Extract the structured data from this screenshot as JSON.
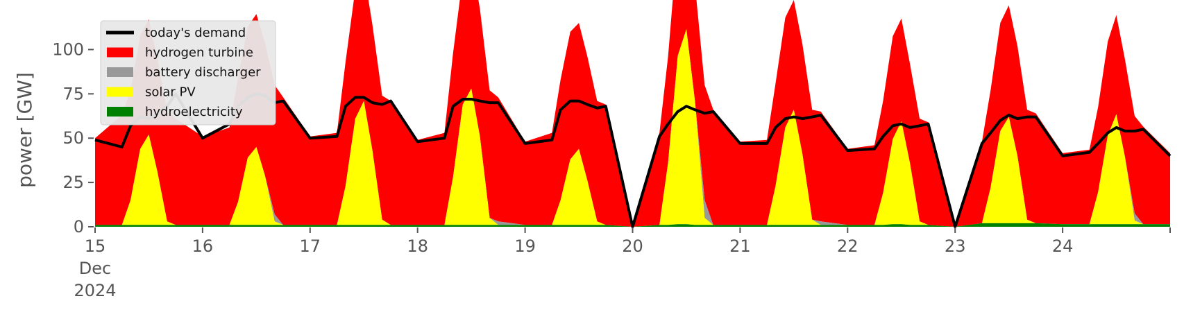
{
  "chart_data": {
    "type": "area",
    "ylabel": "power [GW]",
    "xlim_days": [
      15,
      25
    ],
    "ylim": [
      0,
      117
    ],
    "grid": false,
    "legend_position": "top-left",
    "x_ticks": [
      {
        "day": 15,
        "label": "15"
      },
      {
        "day": 16,
        "label": "16"
      },
      {
        "day": 17,
        "label": "17"
      },
      {
        "day": 18,
        "label": "18"
      },
      {
        "day": 19,
        "label": "19"
      },
      {
        "day": 20,
        "label": "20"
      },
      {
        "day": 21,
        "label": "21"
      },
      {
        "day": 22,
        "label": "22"
      },
      {
        "day": 23,
        "label": "23"
      },
      {
        "day": 24,
        "label": "24"
      }
    ],
    "x_tick_month": "Dec",
    "x_tick_year": "2024",
    "y_ticks": [
      0,
      25,
      50,
      75,
      100
    ],
    "day_samples": [
      0,
      0.25,
      0.33,
      0.42,
      0.5,
      0.58,
      0.67,
      0.75,
      1
    ],
    "series": [
      {
        "name": "hydroelectricity",
        "color": "#008000",
        "values": [
          [
            1,
            1,
            1,
            1,
            1,
            1,
            1,
            1
          ],
          [
            1,
            1,
            1,
            1,
            1,
            1,
            1,
            1
          ],
          [
            1,
            1,
            1,
            1,
            1,
            1,
            1,
            1
          ],
          [
            1,
            1,
            1,
            1,
            1,
            1,
            1,
            1
          ],
          [
            1,
            1,
            1,
            1,
            1,
            1,
            1,
            1
          ],
          [
            1,
            1,
            1,
            1.5,
            1.5,
            1,
            1,
            1
          ],
          [
            1,
            1,
            1,
            1,
            1,
            1,
            1,
            1
          ],
          [
            1,
            1,
            1,
            1.5,
            1.5,
            1,
            1,
            1
          ],
          [
            2,
            2,
            2,
            2,
            2,
            2,
            2,
            2
          ],
          [
            1.5,
            1.5,
            1.5,
            1.5,
            1.5,
            1.5,
            1.5,
            1.5
          ]
        ]
      },
      {
        "name": "solar PV",
        "color": "#ffff00",
        "values": [
          [
            0,
            0,
            14,
            43,
            51,
            30,
            2,
            0
          ],
          [
            0,
            0,
            13,
            38,
            44,
            28,
            2,
            0
          ],
          [
            0,
            0,
            22,
            60,
            70,
            42,
            3,
            0
          ],
          [
            0,
            0,
            27,
            68,
            77,
            50,
            4,
            0
          ],
          [
            0,
            0,
            14,
            37,
            43,
            25,
            2,
            0
          ],
          [
            0,
            0,
            35,
            95,
            110,
            70,
            4,
            0
          ],
          [
            0,
            0,
            22,
            55,
            65,
            40,
            3,
            0
          ],
          [
            0,
            0,
            18,
            48,
            58,
            35,
            2,
            0
          ],
          [
            0,
            0,
            20,
            52,
            60,
            38,
            2,
            0
          ],
          [
            0,
            0,
            18,
            50,
            62,
            38,
            2,
            0
          ]
        ]
      },
      {
        "name": "battery discharger",
        "color": "#999999",
        "values": [
          [
            0,
            0,
            0,
            0,
            0,
            0,
            0,
            0
          ],
          [
            0,
            0,
            0,
            0,
            0,
            0,
            4,
            0
          ],
          [
            0,
            0,
            0,
            0,
            0,
            0,
            0,
            0
          ],
          [
            0,
            0,
            0,
            0,
            0,
            0,
            0,
            2
          ],
          [
            0,
            0,
            0,
            0,
            0,
            0,
            0,
            0
          ],
          [
            0,
            0,
            0,
            0,
            0,
            0,
            10,
            0
          ],
          [
            0,
            0,
            0,
            0,
            0,
            0,
            0,
            2
          ],
          [
            0,
            0,
            0,
            0,
            0,
            0,
            0,
            0
          ],
          [
            0,
            0,
            0,
            0,
            0,
            0,
            0,
            0
          ],
          [
            0,
            0,
            0,
            0,
            0,
            0,
            4,
            0
          ]
        ]
      },
      {
        "name": "hydrogen turbine",
        "color": "#ff0000",
        "values": [
          [
            49,
            62,
            62,
            64,
            65,
            64,
            62,
            60
          ],
          [
            50,
            55,
            70,
            74,
            75,
            75,
            73,
            72
          ],
          [
            50,
            52,
            70,
            73,
            73,
            71,
            70,
            70
          ],
          [
            48,
            52,
            70,
            72,
            73,
            72,
            72,
            70
          ],
          [
            47,
            52,
            68,
            72,
            71,
            70,
            68,
            68
          ],
          [
            52,
            52,
            60,
            66,
            68,
            66,
            65,
            65
          ],
          [
            47,
            48,
            58,
            62,
            62,
            62,
            62,
            62
          ],
          [
            43,
            45,
            52,
            58,
            58,
            56,
            58,
            58
          ],
          [
            46,
            46,
            55,
            61,
            63,
            62,
            62,
            62
          ],
          [
            40,
            42,
            48,
            53,
            56,
            55,
            55,
            55
          ]
        ]
      },
      {
        "name": "today's demand",
        "color": "#000000",
        "values": [
          [
            49,
            45,
            57,
            62,
            61,
            64,
            68,
            75
          ],
          [
            50,
            58,
            68,
            73,
            75,
            74,
            70,
            71
          ],
          [
            50,
            51,
            68,
            73,
            73,
            70,
            69,
            71
          ],
          [
            48,
            50,
            68,
            72,
            72,
            71,
            70,
            70
          ],
          [
            47,
            49,
            66,
            71,
            71,
            69,
            67,
            68
          ],
          [
            52,
            51,
            58,
            65,
            68,
            66,
            64,
            65
          ],
          [
            47,
            47,
            56,
            61,
            62,
            61,
            62,
            63
          ],
          [
            43,
            44,
            51,
            57,
            58,
            56,
            57,
            58
          ],
          [
            46,
            47,
            53,
            60,
            63,
            61,
            62,
            62
          ],
          [
            40,
            42,
            47,
            53,
            56,
            54,
            54,
            55
          ]
        ]
      }
    ],
    "gaps": [
      {
        "start_day": 19.9,
        "end_day": 20.0
      },
      {
        "start_day": 22.85,
        "end_day": 23.0
      }
    ],
    "legend": [
      {
        "label": "today's demand",
        "kind": "line",
        "color": "#000000"
      },
      {
        "label": "hydrogen turbine",
        "kind": "patch",
        "color": "#ff0000"
      },
      {
        "label": "battery discharger",
        "kind": "patch",
        "color": "#999999"
      },
      {
        "label": "solar PV",
        "kind": "patch",
        "color": "#ffff00"
      },
      {
        "label": "hydroelectricity",
        "kind": "patch",
        "color": "#008000"
      }
    ]
  }
}
